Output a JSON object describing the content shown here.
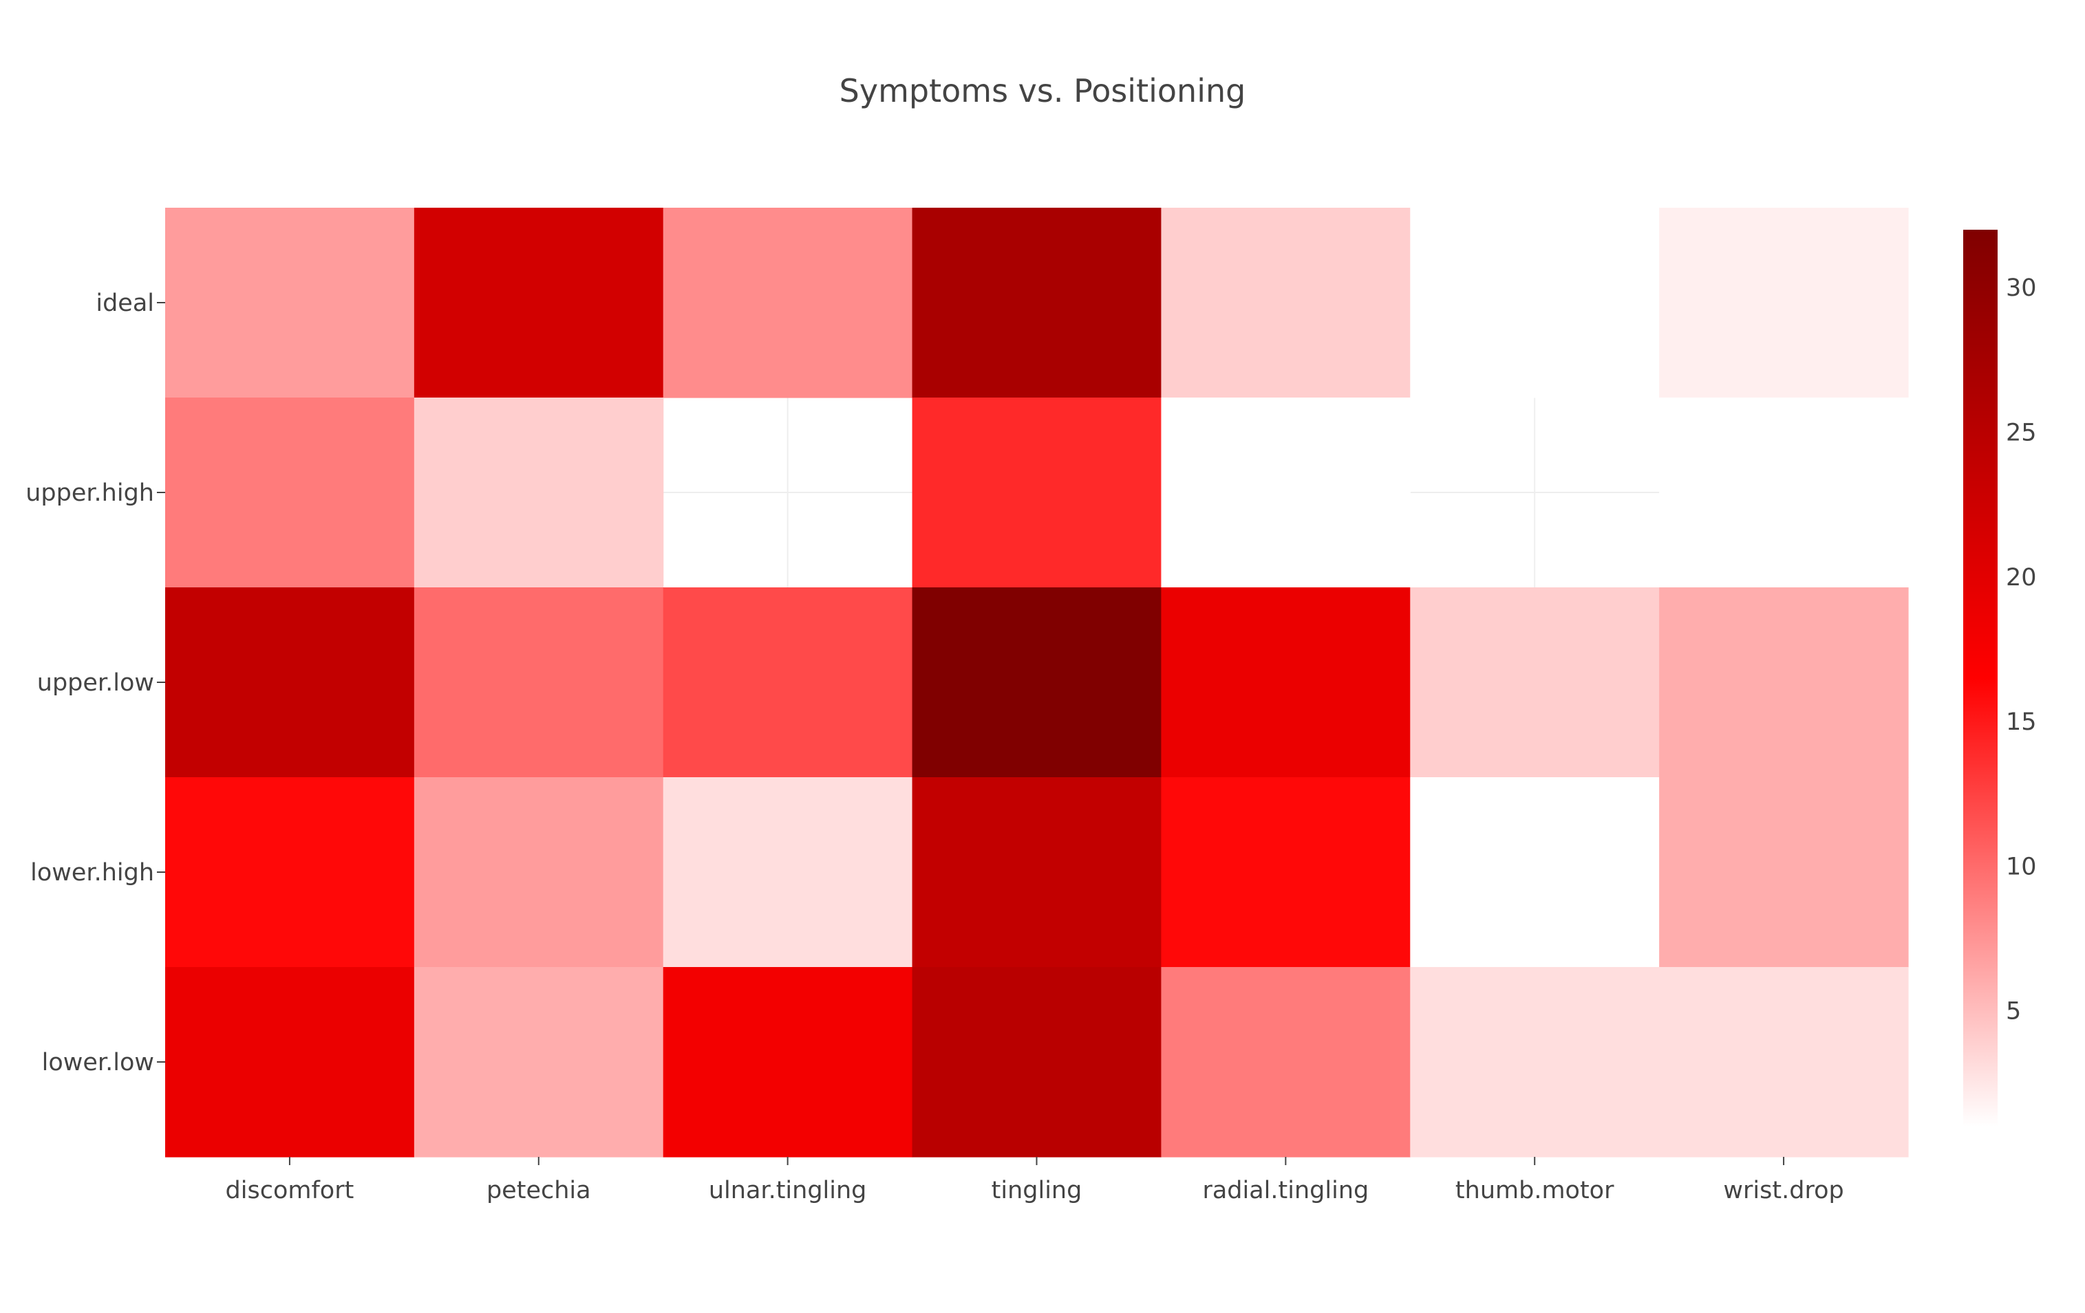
{
  "chart_data": {
    "type": "heatmap",
    "title": "Symptoms vs. Positioning",
    "x": [
      "discomfort",
      "petechia",
      "ulnar.tingling",
      "tingling",
      "radial.tingling",
      "thumb.motor",
      "wrist.drop"
    ],
    "y": [
      "ideal",
      "upper.high",
      "upper.low",
      "lower.high",
      "lower.low"
    ],
    "z": [
      [
        7,
        22,
        8,
        27,
        4,
        1,
        2
      ],
      [
        9,
        4,
        null,
        14,
        1,
        null,
        1
      ],
      [
        24,
        10,
        12,
        32,
        19,
        4,
        6
      ],
      [
        16,
        7,
        3,
        24,
        16,
        1,
        6
      ],
      [
        19,
        6,
        18,
        25,
        9,
        3,
        3
      ]
    ],
    "colorscale": [
      [
        0,
        "#ffffff"
      ],
      [
        0.5,
        "#ff0000"
      ],
      [
        1,
        "#800000"
      ]
    ],
    "zmin": 1,
    "zmax": 32,
    "colorbar": {
      "ticks": [
        5,
        10,
        15,
        20,
        25,
        30
      ]
    },
    "xlabel": "",
    "ylabel": ""
  }
}
